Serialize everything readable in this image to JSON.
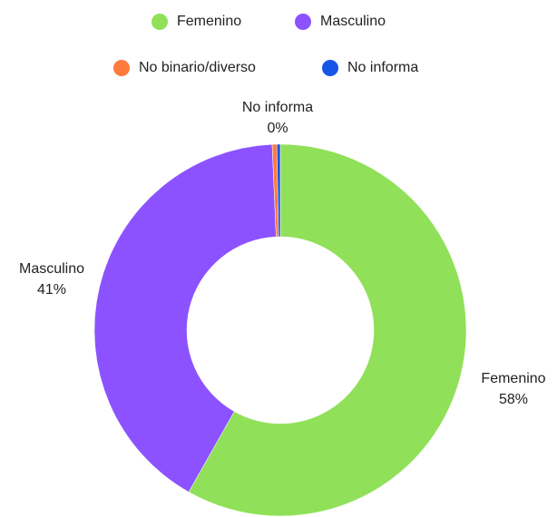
{
  "chart_data": {
    "type": "donut",
    "categories": [
      "Femenino",
      "Masculino",
      "No binario/diverso",
      "No informa"
    ],
    "values": [
      58.2,
      41.1,
      0.4,
      0.3
    ],
    "value_labels": [
      "58%",
      "41%",
      null,
      "0%"
    ],
    "colors": [
      "#91e05a",
      "#8c52ff",
      "#ff7a3d",
      "#1755e6"
    ]
  }
}
